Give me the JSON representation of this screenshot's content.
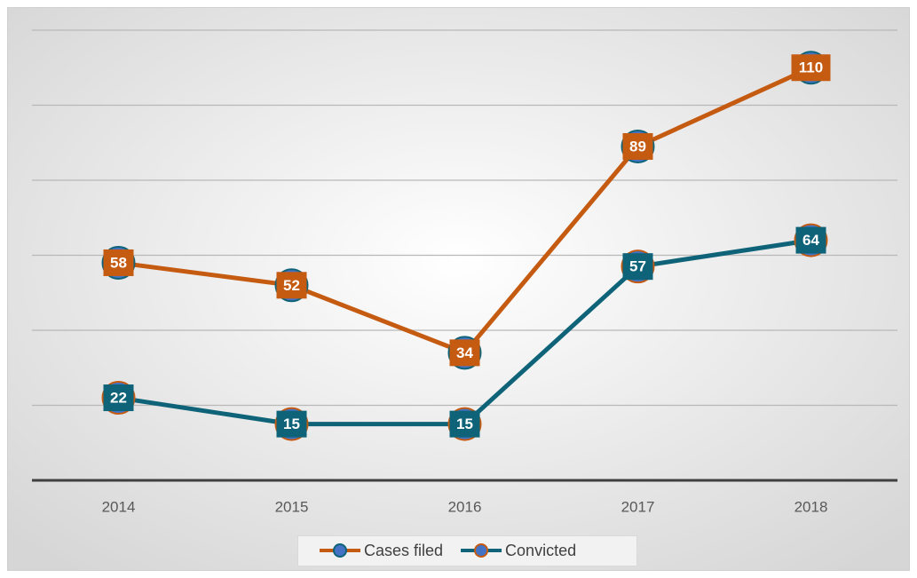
{
  "chart_data": {
    "type": "line",
    "categories": [
      "2014",
      "2015",
      "2016",
      "2017",
      "2018"
    ],
    "series": [
      {
        "name": "Cases filed",
        "color": "#c55a11",
        "values": [
          58,
          52,
          34,
          89,
          110
        ]
      },
      {
        "name": "Convicted",
        "color": "#0e6378",
        "values": [
          22,
          15,
          15,
          57,
          64
        ]
      }
    ],
    "ylim": [
      0,
      120
    ],
    "yticks": [
      20,
      40,
      60,
      80,
      100,
      120
    ],
    "grid": true,
    "legend": "bottom"
  }
}
